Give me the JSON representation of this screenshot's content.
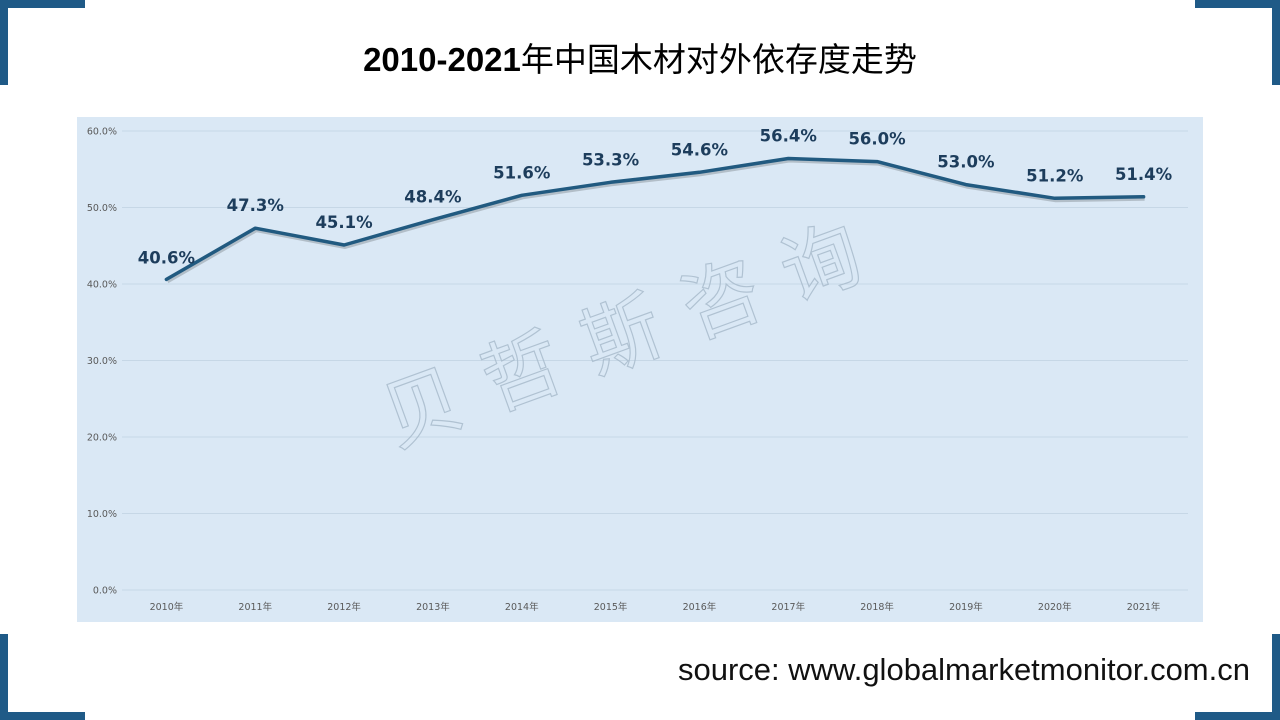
{
  "header": {
    "title_prefix": "2010-2021",
    "title_suffix": "年中国木材对外依存度走势"
  },
  "watermark": "贝哲斯咨询",
  "footer": {
    "source": "source: www.globalmarketmonitor.com.cn"
  },
  "colors": {
    "frame_accent": "#1f5a87",
    "plot_background": "#dae8f5",
    "line": "#215a80",
    "label": "#1d3d5c",
    "gridline": "#c6d7e6",
    "tick_text": "#595959"
  },
  "chart_data": {
    "type": "line",
    "title": "2010-2021年中国木材对外依存度走势",
    "xlabel": "",
    "ylabel": "",
    "categories": [
      "2010年",
      "2011年",
      "2012年",
      "2013年",
      "2014年",
      "2015年",
      "2016年",
      "2017年",
      "2018年",
      "2019年",
      "2020年",
      "2021年"
    ],
    "series": [
      {
        "name": "木材对外依存度",
        "values": [
          40.6,
          47.3,
          45.1,
          48.4,
          51.6,
          53.3,
          54.6,
          56.4,
          56.0,
          53.0,
          51.2,
          51.4
        ],
        "labels": [
          "40.6%",
          "47.3%",
          "45.1%",
          "48.4%",
          "51.6%",
          "53.3%",
          "54.6%",
          "56.4%",
          "56.0%",
          "53.0%",
          "51.2%",
          "51.4%"
        ]
      }
    ],
    "yticks": [
      "0.0%",
      "10.0%",
      "20.0%",
      "30.0%",
      "40.0%",
      "50.0%",
      "60.0%"
    ],
    "ytick_values": [
      0,
      10,
      20,
      30,
      40,
      50,
      60
    ],
    "ylim": [
      0,
      60
    ],
    "grid": true,
    "legend": "none"
  }
}
